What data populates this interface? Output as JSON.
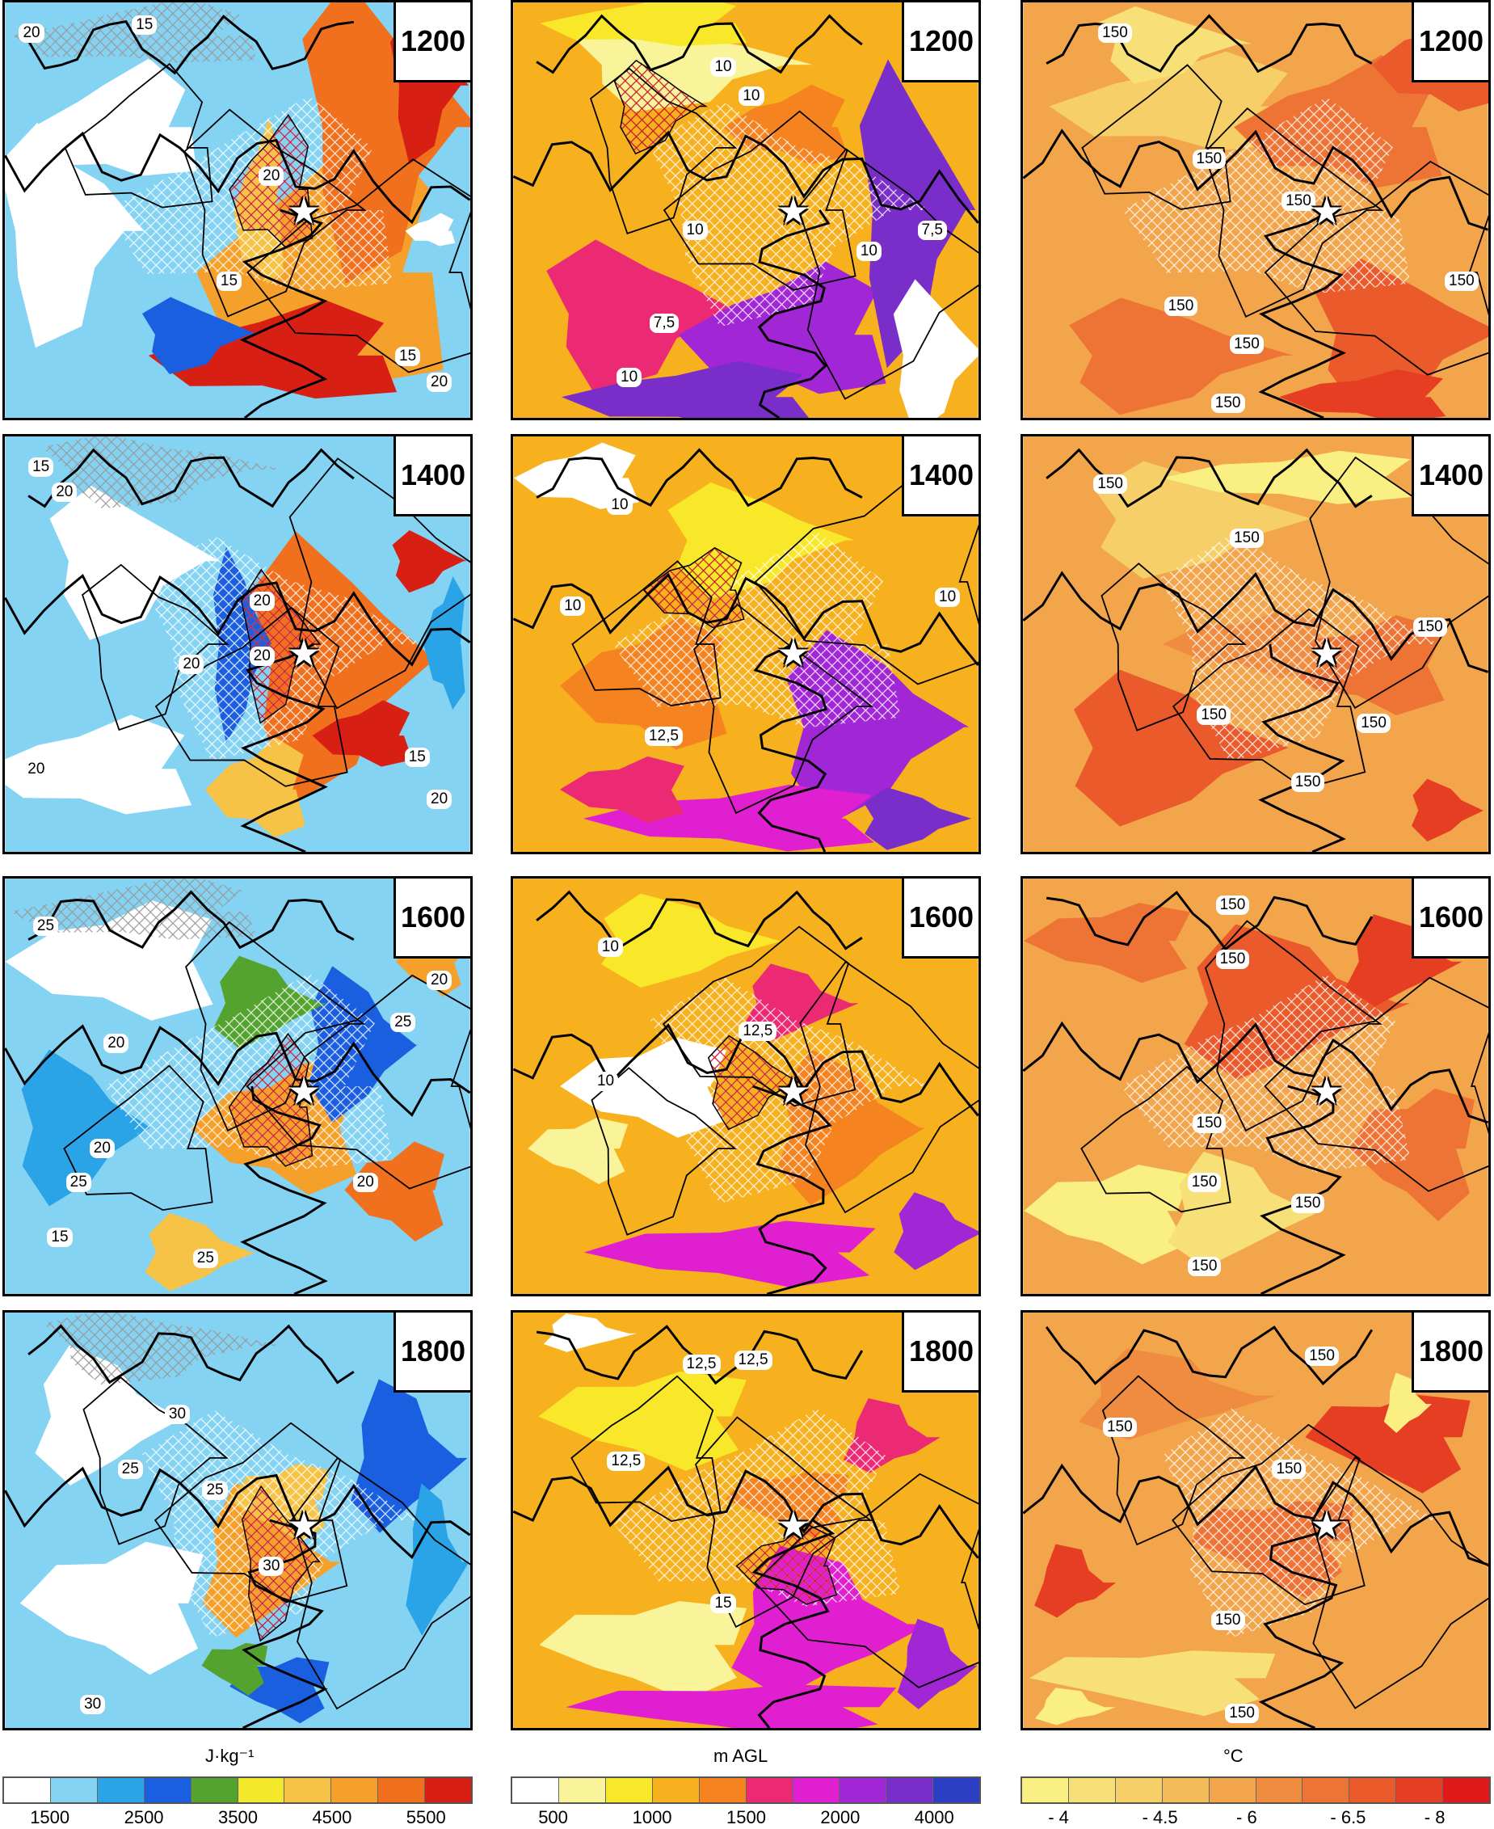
{
  "rows": [
    {
      "time": "1200",
      "col1_iso": [
        "15",
        "20",
        "20",
        "15",
        "15",
        "20"
      ],
      "col2_iso": [
        "10",
        "10",
        "10",
        "10",
        "7,5",
        "7,5",
        "10"
      ],
      "col3_iso": [
        "150",
        "150",
        "150",
        "150",
        "150",
        "150",
        "150"
      ]
    },
    {
      "time": "1400",
      "col1_iso": [
        "15",
        "20",
        "20",
        "20",
        "20",
        "20",
        "15",
        "20"
      ],
      "col2_iso": [
        "10",
        "10",
        "10",
        "12,5"
      ],
      "col3_iso": [
        "150",
        "150",
        "150",
        "150",
        "150",
        "150"
      ]
    },
    {
      "time": "1600",
      "col1_iso": [
        "25",
        "20",
        "25",
        "20",
        "20",
        "20",
        "25",
        "15",
        "25"
      ],
      "col2_iso": [
        "10",
        "10",
        "12,5"
      ],
      "col3_iso": [
        "150",
        "150",
        "150",
        "150",
        "150",
        "150"
      ]
    },
    {
      "time": "1800",
      "col1_iso": [
        "30",
        "25",
        "25",
        "30",
        "30"
      ],
      "col2_iso": [
        "12,5",
        "12,5",
        "12,5",
        "15"
      ],
      "col3_iso": [
        "150",
        "150",
        "150",
        "150",
        "150"
      ]
    }
  ],
  "colorbars": [
    {
      "unit": "J·kg⁻¹",
      "colors": [
        "#ffffff",
        "#84d3f3",
        "#2aa4e6",
        "#1a5fe0",
        "#54a32f",
        "#f4e82a",
        "#f7c346",
        "#f5a02a",
        "#f0701e",
        "#d71f14"
      ],
      "ticks": [
        "1500",
        "2500",
        "3500",
        "4500",
        "5500"
      ]
    },
    {
      "unit": "m AGL",
      "colors": [
        "#ffffff",
        "#f9f39a",
        "#f9e829",
        "#f7b01e",
        "#f5831f",
        "#ec2a74",
        "#e01fd0",
        "#a126d6",
        "#7a2ec9",
        "#2b3ec4"
      ],
      "ticks": [
        "500",
        "1000",
        "1500",
        "2000",
        "4000"
      ]
    },
    {
      "unit": "°C",
      "colors": [
        "#faef82",
        "#f8e078",
        "#f6cf68",
        "#f4bc59",
        "#f2a54b",
        "#f08c3f",
        "#ee7435",
        "#ea5a2b",
        "#e63e23",
        "#e01a1a"
      ],
      "ticks": [
        "- 4",
        "- 4.5",
        "- 6",
        "- 6.5",
        "- 8"
      ]
    }
  ]
}
